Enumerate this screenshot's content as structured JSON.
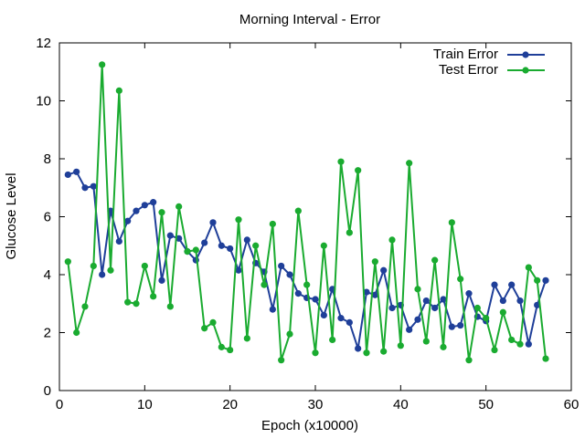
{
  "chart_data": {
    "type": "line",
    "title": "Morning Interval - Error",
    "xlabel": "Epoch (x10000)",
    "ylabel": "Glucose Level",
    "xlim": [
      0,
      60
    ],
    "ylim": [
      0,
      12
    ],
    "xticks": [
      0,
      10,
      20,
      30,
      40,
      50,
      60
    ],
    "yticks": [
      0,
      2,
      4,
      6,
      8,
      10,
      12
    ],
    "grid": false,
    "legend_position": "top-right",
    "x": [
      1,
      2,
      3,
      4,
      5,
      6,
      7,
      8,
      9,
      10,
      11,
      12,
      13,
      14,
      15,
      16,
      17,
      18,
      19,
      20,
      21,
      22,
      23,
      24,
      25,
      26,
      27,
      28,
      29,
      30,
      31,
      32,
      33,
      34,
      35,
      36,
      37,
      38,
      39,
      40,
      41,
      42,
      43,
      44,
      45,
      46,
      47,
      48,
      49,
      50,
      51,
      52,
      53,
      54,
      55,
      56,
      57
    ],
    "series": [
      {
        "name": "Train Error",
        "color": "#1f3f99",
        "values": [
          7.45,
          7.55,
          7.0,
          7.05,
          4.0,
          6.2,
          5.15,
          5.85,
          6.2,
          6.4,
          6.5,
          3.8,
          5.35,
          5.25,
          4.8,
          4.5,
          5.1,
          5.8,
          5.0,
          4.9,
          4.15,
          5.2,
          4.4,
          4.1,
          2.8,
          4.3,
          4.0,
          3.35,
          3.2,
          3.15,
          2.6,
          3.5,
          2.5,
          2.35,
          1.45,
          3.4,
          3.3,
          4.15,
          2.85,
          2.95,
          2.1,
          2.45,
          3.1,
          2.85,
          3.15,
          2.2,
          2.25,
          3.35,
          2.55,
          2.4,
          3.65,
          3.1,
          3.65,
          3.1,
          1.6,
          2.95,
          3.8
        ]
      },
      {
        "name": "Test Error",
        "color": "#1aab30",
        "values": [
          4.45,
          2.0,
          2.9,
          4.3,
          11.25,
          4.15,
          10.35,
          3.05,
          3.0,
          4.3,
          3.25,
          6.15,
          2.9,
          6.35,
          4.8,
          4.85,
          2.15,
          2.35,
          1.5,
          1.4,
          5.9,
          1.8,
          5.0,
          3.65,
          5.75,
          1.05,
          1.95,
          6.2,
          3.65,
          1.3,
          5.0,
          1.75,
          7.9,
          5.45,
          7.6,
          1.3,
          4.45,
          1.35,
          5.2,
          1.55,
          7.85,
          3.5,
          1.7,
          4.5,
          1.5,
          5.8,
          3.85,
          1.05,
          2.85,
          2.5,
          1.4,
          2.7,
          1.75,
          1.6,
          4.25,
          3.8,
          1.1
        ]
      }
    ]
  }
}
